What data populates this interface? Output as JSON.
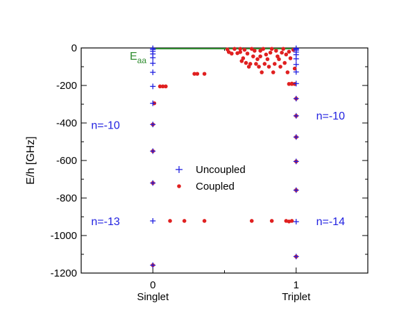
{
  "chart_data": {
    "type": "scatter",
    "ylabel": "E/h [GHz]",
    "xlim": [
      -0.5,
      1.5
    ],
    "ylim": [
      -1200,
      0
    ],
    "x_ticks": [
      {
        "value": 0,
        "label": "Singlet"
      },
      {
        "value": 1,
        "label": "Triplet"
      }
    ],
    "y_ticks": [
      0,
      -200,
      -400,
      -600,
      -800,
      -1000,
      -1200
    ],
    "legend": {
      "placement": "center",
      "entries": [
        "Uncoupled",
        "Coupled"
      ]
    },
    "colors": {
      "uncoupled": "#1f1fe0",
      "coupled": "#e02020",
      "threshold": "#2e8b2e"
    },
    "threshold": {
      "label": "E",
      "subscript": "aa",
      "y": 0,
      "x_range": [
        0,
        1
      ]
    },
    "annotations": [
      {
        "text": "n=-10",
        "x": -0.33,
        "y": -410
      },
      {
        "text": "n=-13",
        "x": -0.33,
        "y": -922
      },
      {
        "text": "n=-10",
        "x": 1.24,
        "y": -360
      },
      {
        "text": "n=-14",
        "x": 1.24,
        "y": -922
      }
    ],
    "series": [
      {
        "name": "Uncoupled",
        "marker": "plus",
        "points": [
          [
            0,
            -2
          ],
          [
            0,
            -8
          ],
          [
            0,
            -18
          ],
          [
            0,
            -32
          ],
          [
            0,
            -52
          ],
          [
            0,
            -82
          ],
          [
            0,
            -130
          ],
          [
            0,
            -205
          ],
          [
            0,
            -295
          ],
          [
            0,
            -408
          ],
          [
            0,
            -550
          ],
          [
            0,
            -720
          ],
          [
            0,
            -922
          ],
          [
            0,
            -1158
          ],
          [
            1,
            -2
          ],
          [
            1,
            -6
          ],
          [
            1,
            -12
          ],
          [
            1,
            -22
          ],
          [
            1,
            -36
          ],
          [
            1,
            -58
          ],
          [
            1,
            -88
          ],
          [
            1,
            -128
          ],
          [
            1,
            -190
          ],
          [
            1,
            -270
          ],
          [
            1,
            -362
          ],
          [
            1,
            -475
          ],
          [
            1,
            -605
          ],
          [
            1,
            -758
          ],
          [
            1,
            -926
          ],
          [
            1,
            -1112
          ]
        ]
      },
      {
        "name": "Coupled",
        "marker": "circle",
        "points": [
          [
            0.01,
            -295
          ],
          [
            0.0,
            -408
          ],
          [
            0.0,
            -550
          ],
          [
            0.0,
            -720
          ],
          [
            0.0,
            -1158
          ],
          [
            0.05,
            -205
          ],
          [
            0.07,
            -205
          ],
          [
            0.09,
            -205
          ],
          [
            0.12,
            -922
          ],
          [
            0.22,
            -922
          ],
          [
            0.36,
            -922
          ],
          [
            0.69,
            -922
          ],
          [
            0.83,
            -922
          ],
          [
            0.93,
            -922
          ],
          [
            0.95,
            -925
          ],
          [
            0.97,
            -922
          ],
          [
            0.29,
            -138
          ],
          [
            0.31,
            -138
          ],
          [
            0.36,
            -138
          ],
          [
            0.52,
            -8
          ],
          [
            0.53,
            -22
          ],
          [
            0.55,
            -30
          ],
          [
            0.57,
            -5
          ],
          [
            0.59,
            -28
          ],
          [
            0.61,
            -5
          ],
          [
            0.61,
            -22
          ],
          [
            0.62,
            -70
          ],
          [
            0.63,
            -55
          ],
          [
            0.64,
            -10
          ],
          [
            0.65,
            -80
          ],
          [
            0.66,
            -30
          ],
          [
            0.67,
            -100
          ],
          [
            0.68,
            -85
          ],
          [
            0.69,
            -5
          ],
          [
            0.7,
            -45
          ],
          [
            0.71,
            -15
          ],
          [
            0.72,
            -85
          ],
          [
            0.73,
            -60
          ],
          [
            0.74,
            -100
          ],
          [
            0.75,
            -15
          ],
          [
            0.75,
            -45
          ],
          [
            0.76,
            -130
          ],
          [
            0.77,
            -5
          ],
          [
            0.78,
            -85
          ],
          [
            0.79,
            -35
          ],
          [
            0.8,
            -60
          ],
          [
            0.81,
            -100
          ],
          [
            0.82,
            -25
          ],
          [
            0.83,
            -5
          ],
          [
            0.84,
            -130
          ],
          [
            0.85,
            -85
          ],
          [
            0.86,
            -15
          ],
          [
            0.87,
            -45
          ],
          [
            0.88,
            -60
          ],
          [
            0.89,
            -100
          ],
          [
            0.9,
            -25
          ],
          [
            0.91,
            -5
          ],
          [
            0.92,
            -80
          ],
          [
            0.93,
            -35
          ],
          [
            0.94,
            -130
          ],
          [
            0.95,
            -20
          ],
          [
            0.96,
            -55
          ],
          [
            0.97,
            -190
          ],
          [
            0.98,
            -10
          ],
          [
            0.99,
            -110
          ],
          [
            0.95,
            -192
          ],
          [
            0.97,
            -192
          ],
          [
            0.99,
            -192
          ],
          [
            1.0,
            -270
          ],
          [
            1.0,
            -362
          ],
          [
            1.0,
            -475
          ],
          [
            1.0,
            -605
          ],
          [
            1.0,
            -758
          ],
          [
            1.0,
            -1112
          ]
        ]
      }
    ]
  }
}
